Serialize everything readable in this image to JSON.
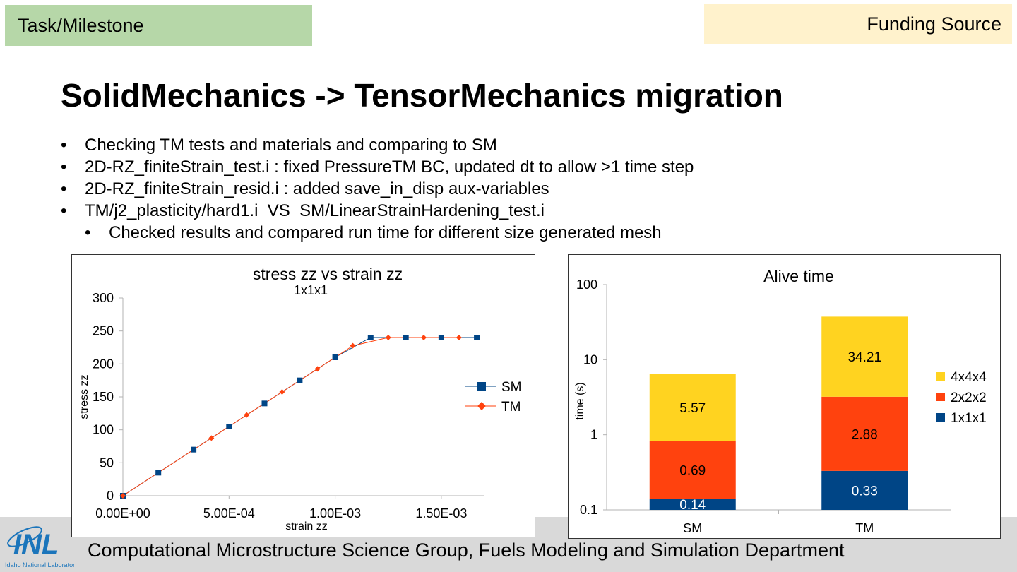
{
  "header": {
    "task_label": "Task/Milestone",
    "funding_label": "Funding Source"
  },
  "title": "SolidMechanics -> TensorMechanics migration",
  "bullets": [
    {
      "text": "Checking TM tests and materials and comparing to SM",
      "level": 1
    },
    {
      "text": "2D-RZ_finiteStrain_test.i : fixed PressureTM BC, updated dt to allow >1 time step",
      "level": 1
    },
    {
      "text": "2D-RZ_finiteStrain_resid.i : added save_in_disp aux-variables",
      "level": 1
    },
    {
      "text": "TM/j2_plasticity/hard1.i  VS  SM/LinearStrainHardening_test.i",
      "level": 1
    },
    {
      "text": "Checked results and compared run time for different size generated mesh",
      "level": 2
    }
  ],
  "bullet_glyph": "•",
  "footer": {
    "text": "Computational Microstructure Science Group, Fuels Modeling and Simulation Department",
    "logo_text": "INL",
    "logo_subtext": "Idaho National Laboratory"
  },
  "chart_data": [
    {
      "type": "line",
      "title": "stress zz vs strain zz",
      "subtitle": "1x1x1",
      "xlabel": "strain zz",
      "ylabel": "stress zz",
      "xlim": [
        0,
        0.0017
      ],
      "ylim": [
        0,
        300
      ],
      "xticks": [
        0,
        0.0005,
        0.001,
        0.0015
      ],
      "xtick_labels": [
        "0.00E+00",
        "5.00E-04",
        "1.00E-03",
        "1.50E-03"
      ],
      "yticks": [
        0,
        50,
        100,
        150,
        200,
        250,
        300
      ],
      "ytick_labels": [
        "0",
        "50",
        "100",
        "150",
        "200",
        "250",
        "300"
      ],
      "legend": "right",
      "series": [
        {
          "name": "SM",
          "color": "#004586",
          "marker": "square",
          "x": [
            0,
            0.000167,
            0.000333,
            0.0005,
            0.000667,
            0.000833,
            0.001,
            0.001167,
            0.001333,
            0.0015,
            0.001667
          ],
          "y": [
            0,
            35,
            70,
            105,
            140,
            175,
            210,
            240,
            240,
            240,
            240
          ]
        },
        {
          "name": "TM",
          "color": "#ff420e",
          "marker": "diamond",
          "x": [
            0,
            0.000417,
            0.000583,
            0.00075,
            0.000917,
            0.001083,
            0.00125,
            0.001417,
            0.001583
          ],
          "y": [
            0,
            87.5,
            122.5,
            157.5,
            192.5,
            227.5,
            240,
            240,
            240
          ]
        }
      ]
    },
    {
      "type": "bar",
      "stacked": true,
      "title": "Alive time",
      "xlabel": "",
      "ylabel": "time (s)",
      "yscale": "log",
      "ylim": [
        0.1,
        100
      ],
      "yticks": [
        0.1,
        1,
        10,
        100
      ],
      "ytick_labels": [
        "0.1",
        "1",
        "10",
        "100"
      ],
      "categories": [
        "SM",
        "TM"
      ],
      "legend": "right",
      "series": [
        {
          "name": "1x1x1",
          "color": "#004586",
          "values": [
            0.14,
            0.33
          ],
          "labels": [
            "0.14",
            "0.33"
          ],
          "label_color": "#ffffff"
        },
        {
          "name": "2x2x2",
          "color": "#ff420e",
          "values": [
            0.69,
            2.88
          ],
          "labels": [
            "0.69",
            "2.88"
          ],
          "label_color": "#000000"
        },
        {
          "name": "4x4x4",
          "color": "#ffd320",
          "values": [
            5.57,
            34.21
          ],
          "labels": [
            "5.57",
            "34.21"
          ],
          "label_color": "#000000"
        }
      ]
    }
  ]
}
